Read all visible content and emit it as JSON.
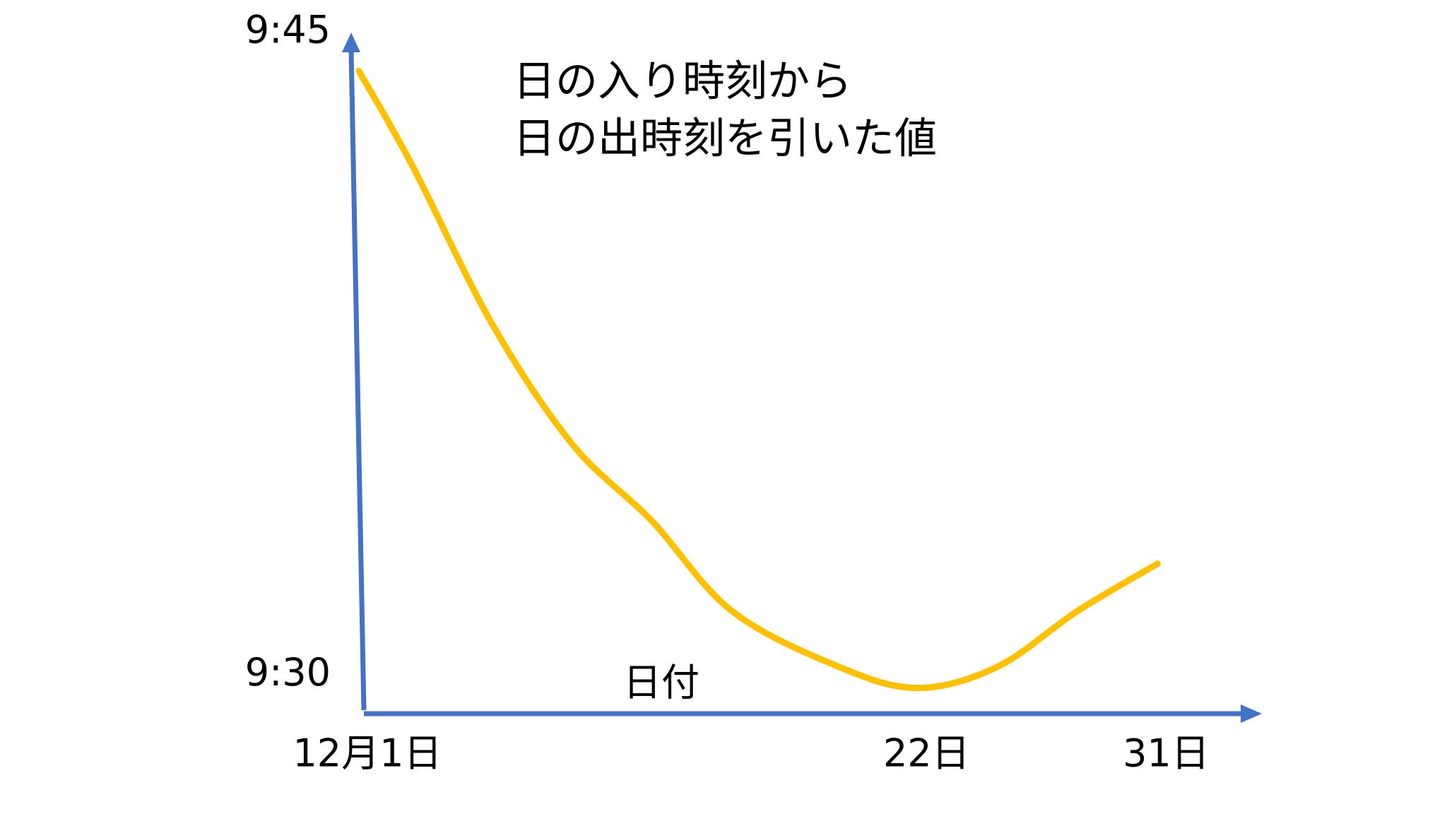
{
  "chart_data": {
    "type": "line",
    "title_lines": [
      "日の入り時刻から",
      "日の出時刻を引いた値"
    ],
    "x_label": "日付",
    "x": [
      1,
      3,
      6,
      9,
      12,
      15,
      19,
      22,
      25,
      28,
      31
    ],
    "series": [
      {
        "color": "#FFC000",
        "values": [
          584.1,
          581.9,
          578.2,
          575.4,
          573.6,
          571.5,
          570.2,
          569.7,
          570.2,
          571.5,
          572.6
        ]
      }
    ],
    "xlim": [
      1,
      35.5
    ],
    "xticks": [
      {
        "value": 1,
        "label": "12月1日"
      },
      {
        "value": 22,
        "label": "22日"
      },
      {
        "value": 31,
        "label": "31日"
      }
    ],
    "ylim": [
      569.1,
      585
    ],
    "yticks": [
      {
        "value": 570,
        "label": "9:30"
      },
      {
        "value": 585,
        "label": "9:45"
      }
    ],
    "axis_color": "#4472C4",
    "grid": false
  }
}
